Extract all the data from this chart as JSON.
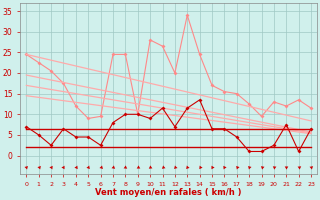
{
  "x": [
    0,
    1,
    2,
    3,
    4,
    5,
    6,
    7,
    8,
    9,
    10,
    11,
    12,
    13,
    14,
    15,
    16,
    17,
    18,
    19,
    20,
    21,
    22,
    23
  ],
  "series": [
    {
      "name": "rafales_max",
      "color": "#ff8888",
      "lw": 0.8,
      "marker": "D",
      "ms": 2.0,
      "values": [
        24.5,
        22.5,
        20.5,
        17.5,
        12.0,
        9.0,
        9.5,
        24.5,
        24.5,
        10.0,
        28.0,
        26.5,
        20.0,
        34.0,
        24.5,
        17.0,
        15.5,
        15.0,
        12.5,
        9.5,
        13.0,
        12.0,
        13.5,
        11.5
      ]
    },
    {
      "name": "trend_upper",
      "color": "#ffaaaa",
      "lw": 0.9,
      "marker": "",
      "ms": 0,
      "values": [
        24.5,
        23.8,
        23.1,
        22.4,
        21.7,
        21.0,
        20.3,
        19.6,
        18.9,
        18.2,
        17.5,
        16.8,
        16.1,
        15.4,
        14.7,
        14.0,
        13.3,
        12.6,
        11.9,
        11.2,
        10.5,
        9.8,
        9.1,
        8.4
      ]
    },
    {
      "name": "trend_mid_upper",
      "color": "#ffaaaa",
      "lw": 0.9,
      "marker": "",
      "ms": 0,
      "values": [
        19.5,
        18.9,
        18.3,
        17.7,
        17.1,
        16.5,
        15.9,
        15.3,
        14.7,
        14.1,
        13.5,
        12.9,
        12.3,
        11.7,
        11.1,
        10.5,
        9.9,
        9.3,
        8.7,
        8.1,
        7.5,
        6.9,
        6.3,
        5.7
      ]
    },
    {
      "name": "trend_mid_lower",
      "color": "#ffaaaa",
      "lw": 0.9,
      "marker": "",
      "ms": 0,
      "values": [
        17.0,
        16.5,
        16.0,
        15.5,
        15.0,
        14.5,
        14.0,
        13.5,
        13.0,
        12.5,
        12.0,
        11.5,
        11.0,
        10.5,
        10.0,
        9.5,
        9.0,
        8.5,
        8.0,
        7.5,
        7.0,
        6.5,
        6.0,
        5.5
      ]
    },
    {
      "name": "trend_lower",
      "color": "#ffaaaa",
      "lw": 0.9,
      "marker": "",
      "ms": 0,
      "values": [
        14.5,
        14.1,
        13.7,
        13.3,
        12.9,
        12.5,
        12.1,
        11.7,
        11.3,
        10.9,
        10.5,
        10.1,
        9.7,
        9.3,
        8.9,
        8.5,
        8.1,
        7.7,
        7.3,
        6.9,
        6.5,
        6.1,
        5.7,
        5.3
      ]
    },
    {
      "name": "vent_moyen",
      "color": "#cc0000",
      "lw": 0.8,
      "marker": "D",
      "ms": 2.0,
      "values": [
        7.0,
        5.0,
        2.5,
        6.5,
        4.5,
        4.5,
        2.5,
        8.0,
        10.0,
        10.0,
        9.0,
        11.5,
        7.0,
        11.5,
        13.5,
        6.5,
        6.5,
        4.5,
        1.0,
        1.0,
        2.5,
        7.5,
        1.0,
        6.5
      ]
    },
    {
      "name": "const_upper",
      "color": "#cc0000",
      "lw": 1.0,
      "marker": "",
      "ms": 0,
      "values": [
        6.5,
        6.5,
        6.5,
        6.5,
        6.5,
        6.5,
        6.5,
        6.5,
        6.5,
        6.5,
        6.5,
        6.5,
        6.5,
        6.5,
        6.5,
        6.5,
        6.5,
        6.5,
        6.5,
        6.5,
        6.5,
        6.5,
        6.5,
        6.5
      ]
    },
    {
      "name": "const_lower",
      "color": "#cc0000",
      "lw": 1.0,
      "marker": "",
      "ms": 0,
      "values": [
        2.0,
        2.0,
        2.0,
        2.0,
        2.0,
        2.0,
        2.0,
        2.0,
        2.0,
        2.0,
        2.0,
        2.0,
        2.0,
        2.0,
        2.0,
        2.0,
        2.0,
        2.0,
        2.0,
        2.0,
        2.0,
        2.0,
        2.0,
        2.0
      ]
    }
  ],
  "xlabel": "Vent moyen/en rafales ( km/h )",
  "xlim": [
    -0.5,
    23.5
  ],
  "ylim": [
    -4.5,
    37
  ],
  "yticks": [
    0,
    5,
    10,
    15,
    20,
    25,
    30,
    35
  ],
  "bg_color": "#d0f0ec",
  "grid_color": "#a0c8c4",
  "tick_color": "#cc0000",
  "xlabel_color": "#cc0000"
}
